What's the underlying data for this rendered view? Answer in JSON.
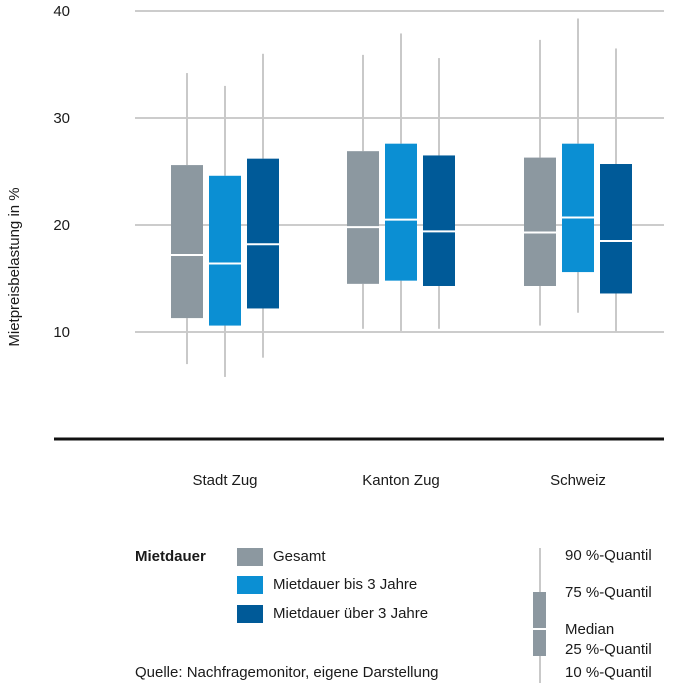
{
  "chart_data": {
    "type": "boxplot",
    "ylabel": "Mietpreisbelastung in %",
    "ylim": [
      0,
      40
    ],
    "yticks": [
      10,
      20,
      30,
      40
    ],
    "categories": [
      "Stadt Zug",
      "Kanton Zug",
      "Schweiz"
    ],
    "series": [
      {
        "name": "Gesamt",
        "color": "#8c98a0",
        "stats": [
          {
            "p10": 7,
            "q25": 11.3,
            "median": 17.2,
            "q75": 25.6,
            "p90": 34.2
          },
          {
            "p10": 10.3,
            "q25": 14.5,
            "median": 19.8,
            "q75": 26.9,
            "p90": 35.9
          },
          {
            "p10": 10.6,
            "q25": 14.3,
            "median": 19.3,
            "q75": 26.3,
            "p90": 37.3
          }
        ]
      },
      {
        "name": "Mietdauer bis 3 Jahre",
        "color": "#0b8fd3",
        "stats": [
          {
            "p10": 5.8,
            "q25": 10.6,
            "median": 16.4,
            "q75": 24.6,
            "p90": 33.0
          },
          {
            "p10": 10.1,
            "q25": 14.8,
            "median": 20.5,
            "q75": 27.6,
            "p90": 37.9
          },
          {
            "p10": 11.8,
            "q25": 15.6,
            "median": 20.7,
            "q75": 27.6,
            "p90": 39.3
          }
        ]
      },
      {
        "name": "Mietdauer über 3 Jahre",
        "color": "#005a98",
        "stats": [
          {
            "p10": 7.6,
            "q25": 12.2,
            "median": 18.2,
            "q75": 26.2,
            "p90": 36.0
          },
          {
            "p10": 10.3,
            "q25": 14.3,
            "median": 19.4,
            "q75": 26.5,
            "p90": 35.6
          },
          {
            "p10": 10.0,
            "q25": 13.6,
            "median": 18.5,
            "q75": 25.7,
            "p90": 36.5
          }
        ]
      }
    ]
  },
  "legend": {
    "title": "Mietdauer",
    "items": [
      {
        "label": "Gesamt",
        "color": "#8c98a0"
      },
      {
        "label": "Mietdauer bis 3 Jahre",
        "color": "#0b8fd3"
      },
      {
        "label": "Mietdauer über 3 Jahre",
        "color": "#005a98"
      }
    ]
  },
  "key": {
    "p90": "90 %-Quantil",
    "q75": "75 %-Quantil",
    "median": "Median",
    "q25": "25 %-Quantil",
    "p10": "10 %-Quantil",
    "color": "#8c98a0"
  },
  "source": "Quelle: Nachfragemonitor, eigene Darstellung"
}
